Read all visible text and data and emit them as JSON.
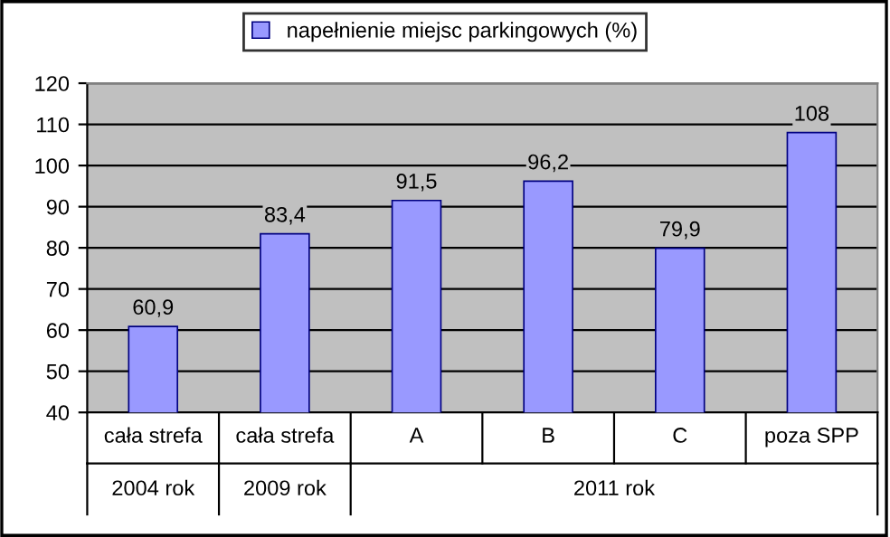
{
  "chart_data": {
    "type": "bar",
    "categories": [
      "cała strefa",
      "cała strefa",
      "A",
      "B",
      "C",
      "poza SPP"
    ],
    "series": [
      {
        "name": "napełnienie miejsc parkingowych (%)",
        "color": "#9999ff",
        "values": [
          60.9,
          83.4,
          91.5,
          96.2,
          79.9,
          108
        ],
        "value_labels": [
          "60,9",
          "83,4",
          "91,5",
          "96,2",
          "79,9",
          "108"
        ]
      }
    ],
    "annotations": [
      "2004 rok",
      "2009 rok",
      "2011 rok"
    ],
    "ylim": [
      40,
      120
    ],
    "yticks": [
      40,
      50,
      60,
      70,
      80,
      90,
      100,
      110,
      120
    ],
    "grid": "y",
    "legend": "top"
  }
}
